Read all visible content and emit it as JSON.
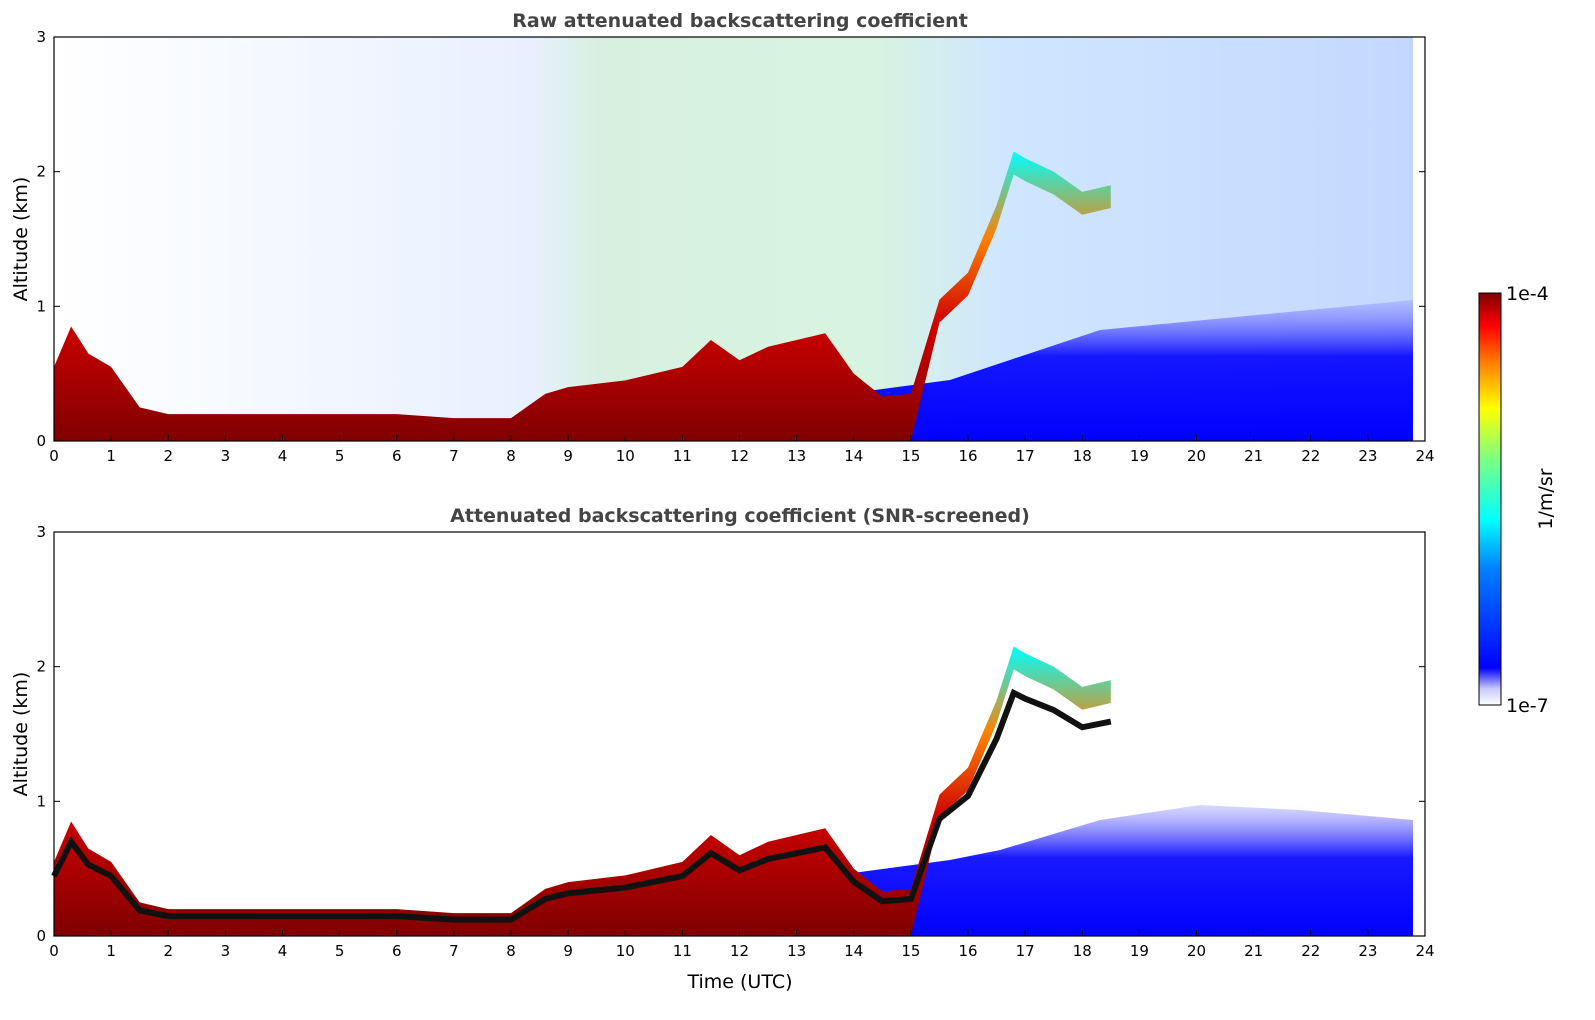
{
  "chart_data": [
    {
      "type": "heatmap",
      "title": "Raw attenuated backscattering coefficient",
      "xlabel": "",
      "ylabel": "Altitude (km)",
      "xlim": [
        0,
        24
      ],
      "ylim": [
        0,
        3
      ],
      "x_ticks": [
        "0",
        "1",
        "2",
        "3",
        "4",
        "5",
        "6",
        "7",
        "8",
        "9",
        "10",
        "11",
        "12",
        "13",
        "14",
        "15",
        "16",
        "17",
        "18",
        "19",
        "20",
        "21",
        "22",
        "23",
        "24"
      ],
      "y_ticks": [
        "0",
        "1",
        "2",
        "3"
      ],
      "colorscale": "jet",
      "log_scale": true,
      "data_end_time": 23.8,
      "boundary_layer_top_km": {
        "x": [
          0,
          0.3,
          0.6,
          1.0,
          1.5,
          2.0,
          4.0,
          6.0,
          7.0,
          8.0,
          8.6,
          9.0,
          10.0,
          11.0,
          11.5,
          12.0,
          12.5,
          13.0,
          13.5,
          14.0,
          14.5,
          15.0,
          15.5,
          16.0,
          16.5,
          16.8,
          17.0,
          17.5,
          18.0,
          18.5
        ],
        "y": [
          0.5,
          0.8,
          0.6,
          0.5,
          0.2,
          0.15,
          0.15,
          0.15,
          0.12,
          0.12,
          0.3,
          0.35,
          0.4,
          0.5,
          0.7,
          0.55,
          0.65,
          0.7,
          0.75,
          0.45,
          0.28,
          0.3,
          1.0,
          1.2,
          1.7,
          2.1,
          2.05,
          1.95,
          1.8,
          1.85
        ]
      }
    },
    {
      "type": "heatmap",
      "title": "Attenuated backscattering coefficient (SNR-screened)",
      "xlabel": "Time (UTC)",
      "ylabel": "Altitude (km)",
      "xlim": [
        0,
        24
      ],
      "ylim": [
        0,
        3
      ],
      "x_ticks": [
        "0",
        "1",
        "2",
        "3",
        "4",
        "5",
        "6",
        "7",
        "8",
        "9",
        "10",
        "11",
        "12",
        "13",
        "14",
        "15",
        "16",
        "17",
        "18",
        "19",
        "20",
        "21",
        "22",
        "23",
        "24"
      ],
      "y_ticks": [
        "0",
        "1",
        "2",
        "3"
      ],
      "colorscale": "jet",
      "log_scale": true,
      "data_end_time": 23.8
    }
  ],
  "colorbar": {
    "label": "1/m/sr",
    "max_label": "1e-4",
    "min_label": "1e-7",
    "min_value": 1e-07,
    "max_value": 0.0001,
    "colors": [
      "#ffffff",
      "#c8c8ff",
      "#0000ff",
      "#0080ff",
      "#00ffff",
      "#80ff80",
      "#ffff00",
      "#ff8000",
      "#ff0000",
      "#800000"
    ]
  }
}
